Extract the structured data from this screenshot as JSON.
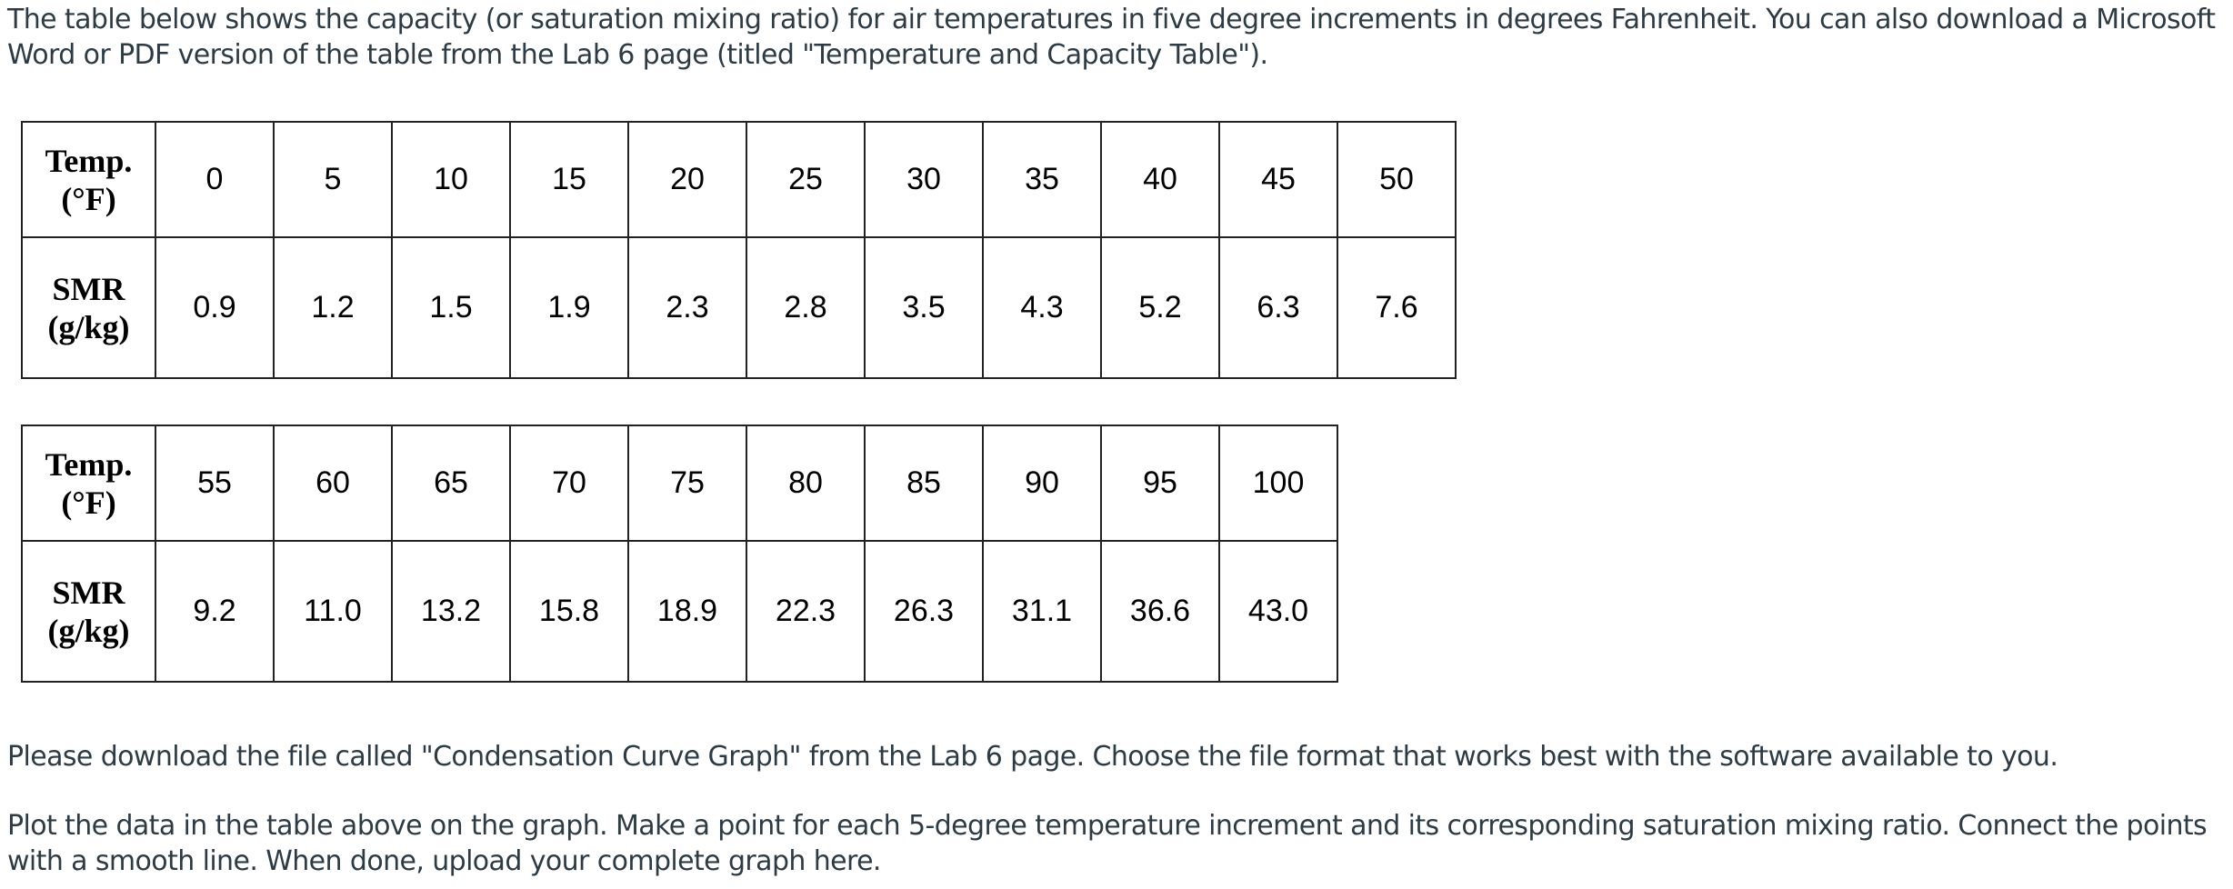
{
  "intro": "The table below shows the capacity (or saturation mixing ratio) for air temperatures in five degree increments in degrees Fahrenheit. You can also download a Microsoft Word or PDF version of the table from the Lab 6 page (titled \"Temperature and Capacity Table\").",
  "tables": [
    {
      "temp_label": "Temp. (°F)",
      "smr_label": "SMR (g/kg)",
      "temps": [
        0,
        5,
        10,
        15,
        20,
        25,
        30,
        35,
        40,
        45,
        50
      ],
      "smr": [
        "0.9",
        "1.2",
        "1.5",
        "1.9",
        "2.3",
        "2.8",
        "3.5",
        "4.3",
        "5.2",
        "6.3",
        "7.6"
      ]
    },
    {
      "temp_label": "Temp. (°F)",
      "smr_label": "SMR (g/kg)",
      "temps": [
        55,
        60,
        65,
        70,
        75,
        80,
        85,
        90,
        95,
        100
      ],
      "smr": [
        "9.2",
        "11.0",
        "13.2",
        "15.8",
        "18.9",
        "22.3",
        "26.3",
        "31.1",
        "36.6",
        "43.0"
      ]
    }
  ],
  "download_note": "Please download the file called \"Condensation Curve Graph\" from the Lab 6 page. Choose the file format that works best with the software available to you.",
  "plot_instructions": "Plot the data in the table above on the graph. Make a point for each 5-degree temperature increment and its corresponding saturation mixing ratio. Connect the points with a smooth line. When done, upload your complete graph here."
}
